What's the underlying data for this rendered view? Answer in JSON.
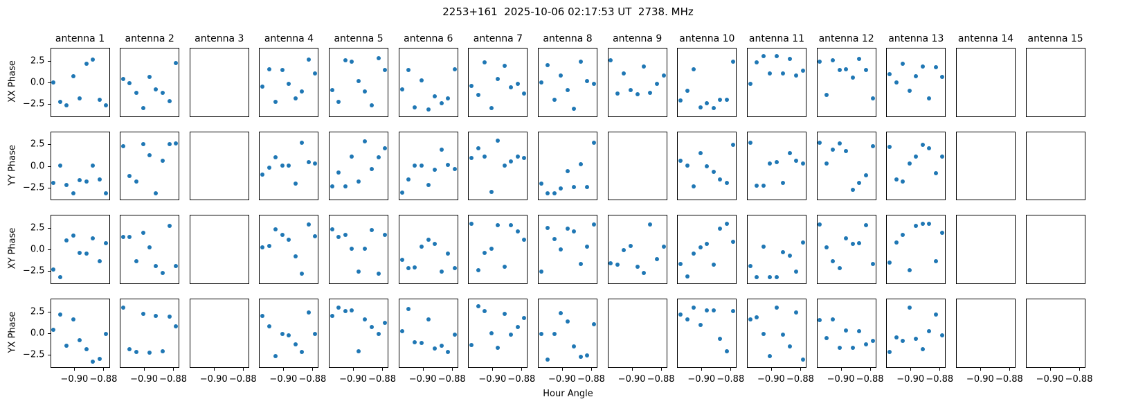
{
  "figure": {
    "title": "2253+161  2025-10-06 02:17:53 UT  2738. MHz",
    "xlabel": "Hour Angle"
  },
  "colors": {
    "marker": "#1f77b4",
    "axes": "#000000"
  },
  "chart_data": {
    "type": "scatter",
    "title": "2253+161  2025-10-06 02:17:53 UT  2738. MHz",
    "xlabel": "Hour Angle",
    "rows": [
      "XX Phase",
      "YY Phase",
      "XY Phase",
      "YX Phase"
    ],
    "cols": [
      "antenna 1",
      "antenna 2",
      "antenna 3",
      "antenna 4",
      "antenna 5",
      "antenna 6",
      "antenna 7",
      "antenna 8",
      "antenna 9",
      "antenna 10",
      "antenna 11",
      "antenna 12",
      "antenna 13",
      "antenna 14",
      "antenna 15"
    ],
    "xlim": [
      -0.9166,
      -0.8757
    ],
    "ylim": [
      -4.0,
      4.0
    ],
    "xticks": [
      -0.9,
      -0.88
    ],
    "xtick_labels": [
      "−0.90",
      "−0.88"
    ],
    "yticks": [
      2.5,
      0.0,
      -2.5
    ],
    "ytick_labels": [
      "2.5",
      "0.0",
      "−2.5"
    ],
    "x": [
      -0.9148,
      -0.9103,
      -0.9058,
      -0.9012,
      -0.8967,
      -0.8922,
      -0.8877,
      -0.8831,
      -0.8786
    ],
    "series": [
      {
        "pol": "XX",
        "antennas": [
          [
            0.1,
            -2.2,
            -2.6,
            0.8,
            -1.8,
            2.2,
            2.7,
            -1.9,
            -2.6
          ],
          [
            0.5,
            0.0,
            -1.1,
            -2.9,
            0.7,
            -0.7,
            -1.1,
            -2.1,
            2.3
          ],
          null,
          [
            -0.4,
            1.6,
            -2.2,
            1.5,
            -0.1,
            -1.8,
            -1.0,
            2.7,
            1.1
          ],
          [
            -0.8,
            -2.2,
            2.6,
            2.5,
            0.2,
            -1.0,
            -2.6,
            2.9,
            1.5
          ],
          [
            -0.7,
            1.5,
            -2.8,
            0.3,
            -3.1,
            -1.5,
            -2.3,
            -1.8,
            1.6
          ],
          [
            -0.3,
            -1.4,
            2.4,
            -2.9,
            0.5,
            2.0,
            -0.5,
            -0.1,
            -1.2
          ],
          [
            0.1,
            2.1,
            -1.9,
            0.9,
            -0.8,
            -3.0,
            2.5,
            0.2,
            -0.1
          ],
          [
            2.6,
            -1.2,
            1.1,
            -0.8,
            -1.3,
            1.9,
            -1.1,
            -0.1,
            0.9
          ],
          [
            -2.0,
            -0.9,
            1.6,
            -2.8,
            -2.3,
            -2.9,
            -1.9,
            -1.9,
            2.5
          ],
          [
            -0.1,
            2.4,
            3.1,
            1.1,
            3.1,
            1.1,
            2.8,
            0.9,
            1.4
          ],
          [
            2.5,
            -1.4,
            2.6,
            1.5,
            1.6,
            0.6,
            2.8,
            1.5,
            -1.8
          ],
          [
            1.0,
            0.1,
            2.2,
            -0.9,
            0.8,
            1.9,
            -1.8,
            1.8,
            0.7
          ],
          null,
          null
        ]
      },
      {
        "pol": "YY",
        "antennas": [
          [
            -1.9,
            0.1,
            -2.1,
            -3.1,
            -1.6,
            -1.7,
            0.1,
            -1.5,
            -3.1
          ],
          [
            2.4,
            -1.1,
            -1.7,
            2.6,
            1.3,
            -3.1,
            0.7,
            2.6,
            2.7
          ],
          null,
          [
            -0.9,
            -0.1,
            1.1,
            0.1,
            0.1,
            -2.0,
            2.8,
            0.5,
            0.4
          ],
          [
            -2.3,
            -0.7,
            -2.3,
            1.2,
            -1.7,
            2.9,
            -0.3,
            1.1,
            2.1
          ],
          [
            -3.0,
            -1.5,
            0.1,
            0.1,
            -2.1,
            -0.4,
            2.0,
            0.2,
            -0.3
          ],
          [
            1.0,
            2.1,
            1.2,
            -2.9,
            3.0,
            0.1,
            0.6,
            1.2,
            1.0
          ],
          [
            -2.0,
            -3.1,
            -3.1,
            -2.5,
            -0.5,
            -2.4,
            0.3,
            -2.4,
            2.8
          ],
          null,
          [
            0.7,
            0.1,
            -2.3,
            1.6,
            0.0,
            -0.6,
            -1.5,
            -1.9,
            2.5
          ],
          [
            2.8,
            -2.2,
            -2.2,
            0.4,
            0.5,
            -1.9,
            1.6,
            0.7,
            0.4
          ],
          [
            2.8,
            0.4,
            2.0,
            2.7,
            1.8,
            -2.7,
            -1.9,
            -1.0,
            2.4
          ],
          [
            2.3,
            -1.5,
            -1.7,
            0.4,
            1.2,
            2.5,
            2.1,
            -0.8,
            1.2
          ],
          null,
          null
        ]
      },
      {
        "pol": "XY",
        "antennas": [
          [
            -2.2,
            -3.1,
            1.1,
            1.7,
            -0.3,
            -0.4,
            1.4,
            -1.3,
            0.8
          ],
          [
            1.5,
            1.5,
            -1.3,
            2.0,
            0.3,
            -1.8,
            -2.6,
            2.8,
            -1.8
          ],
          null,
          [
            0.3,
            0.5,
            2.4,
            1.8,
            1.2,
            -0.7,
            -2.7,
            3.0,
            1.6
          ],
          [
            2.4,
            1.5,
            1.8,
            0.2,
            -2.5,
            0.2,
            2.3,
            -2.7,
            1.8
          ],
          [
            -1.1,
            -2.1,
            -2.0,
            0.4,
            1.2,
            0.7,
            -2.5,
            -0.4,
            -2.1
          ],
          [
            3.1,
            -2.3,
            -0.3,
            0.2,
            2.9,
            -1.9,
            2.9,
            2.2,
            1.2
          ],
          [
            -2.5,
            2.6,
            1.3,
            0.1,
            2.5,
            2.2,
            -1.6,
            0.4,
            3.0
          ],
          [
            -1.5,
            -1.7,
            0.0,
            0.5,
            -1.9,
            -2.6,
            3.0,
            -1.0,
            0.4
          ],
          [
            -1.6,
            -3.0,
            -0.4,
            0.3,
            0.7,
            -1.7,
            2.5,
            3.1,
            1.0
          ],
          [
            -1.8,
            -3.1,
            0.4,
            -3.1,
            -3.1,
            -0.2,
            -0.6,
            -2.5,
            0.9
          ],
          [
            3.0,
            0.3,
            -1.3,
            -2.1,
            1.4,
            0.7,
            0.8,
            2.9,
            -1.6
          ],
          [
            -1.4,
            0.9,
            1.8,
            -2.3,
            2.8,
            3.1,
            3.1,
            -1.3,
            2.0
          ],
          null,
          null
        ]
      },
      {
        "pol": "YX",
        "antennas": [
          [
            0.5,
            2.2,
            -1.4,
            1.7,
            -0.7,
            -1.8,
            -3.2,
            -2.9,
            0.0
          ],
          [
            3.0,
            -1.8,
            -2.1,
            2.3,
            -2.2,
            2.1,
            -2.0,
            2.0,
            0.9
          ],
          null,
          [
            2.1,
            0.9,
            -2.6,
            0.0,
            -0.2,
            -1.2,
            -2.1,
            2.5,
            0.0
          ],
          [
            2.1,
            3.0,
            2.6,
            2.7,
            -2.0,
            1.7,
            0.8,
            0.0,
            1.3
          ],
          [
            0.3,
            2.9,
            -1.0,
            -1.1,
            1.7,
            -1.7,
            -1.4,
            -2.1,
            -0.1
          ],
          [
            -1.3,
            3.2,
            2.6,
            0.1,
            -1.6,
            2.3,
            -0.1,
            0.8,
            1.8
          ],
          [
            0.0,
            -3.0,
            0.0,
            2.4,
            1.4,
            -1.5,
            -2.7,
            -2.5,
            1.1
          ],
          null,
          [
            2.2,
            1.7,
            3.0,
            1.0,
            2.7,
            2.7,
            -0.6,
            -2.0,
            2.6
          ],
          [
            1.7,
            1.9,
            0.0,
            -2.6,
            3.0,
            -0.1,
            -1.5,
            2.5,
            -3.0
          ],
          [
            1.6,
            -0.5,
            1.7,
            -1.6,
            0.4,
            -1.6,
            0.3,
            -1.2,
            -0.8
          ],
          [
            -2.1,
            -0.4,
            -0.8,
            3.0,
            -0.6,
            -1.8,
            0.3,
            2.2,
            -0.2
          ],
          null,
          null
        ]
      }
    ]
  }
}
